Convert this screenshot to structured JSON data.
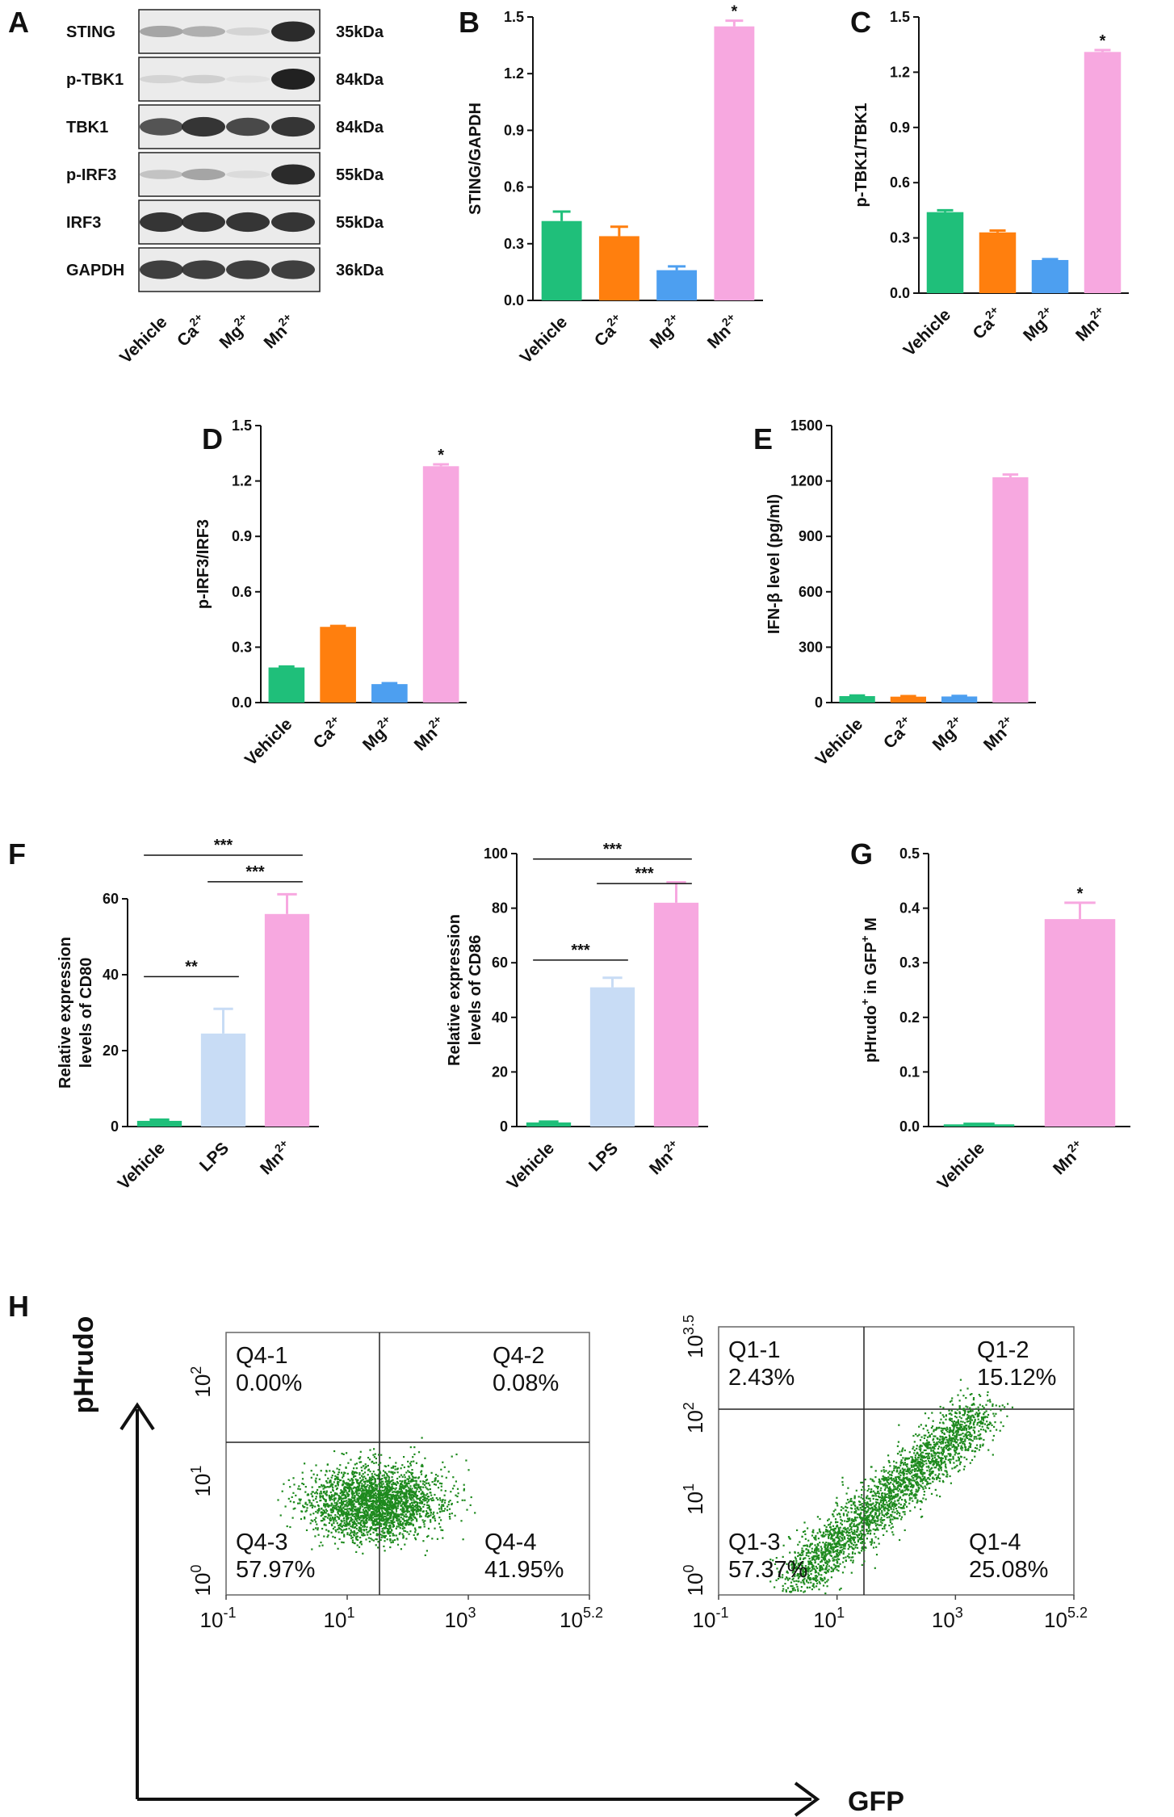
{
  "panel_letters": [
    "A",
    "B",
    "C",
    "D",
    "E",
    "F",
    "G",
    "H"
  ],
  "western_blot": {
    "rows": [
      {
        "protein": "STING",
        "size": "35kDa",
        "bands": [
          0.35,
          0.3,
          0.12,
          0.95
        ]
      },
      {
        "protein": "p-TBK1",
        "size": "84kDa",
        "bands": [
          0.12,
          0.14,
          0.05,
          1.0
        ]
      },
      {
        "protein": "TBK1",
        "size": "84kDa",
        "bands": [
          0.75,
          0.9,
          0.8,
          0.9
        ]
      },
      {
        "protein": "p-IRF3",
        "size": "55kDa",
        "bands": [
          0.2,
          0.35,
          0.08,
          0.95
        ]
      },
      {
        "protein": "IRF3",
        "size": "55kDa",
        "bands": [
          0.9,
          0.9,
          0.9,
          0.9
        ]
      },
      {
        "protein": "GAPDH",
        "size": "36kDa",
        "bands": [
          0.85,
          0.85,
          0.85,
          0.85
        ]
      }
    ],
    "lanes": [
      {
        "base": "Vehicle",
        "sup": ""
      },
      {
        "base": "Ca",
        "sup": "2+"
      },
      {
        "base": "Mg",
        "sup": "2+"
      },
      {
        "base": "Mn",
        "sup": "2+"
      }
    ]
  },
  "chart_data": [
    {
      "panel": "B",
      "type": "bar",
      "ylabel": "STING/GAPDH",
      "ylim": [
        0,
        1.5
      ],
      "yticks": [
        "0.0",
        "0.3",
        "0.6",
        "0.9",
        "1.2",
        "1.5"
      ],
      "categories": [
        {
          "base": "Vehicle",
          "sup": ""
        },
        {
          "base": "Ca",
          "sup": "2+"
        },
        {
          "base": "Mg",
          "sup": "2+"
        },
        {
          "base": "Mn",
          "sup": "2+"
        }
      ],
      "values": [
        0.42,
        0.34,
        0.16,
        1.45
      ],
      "errors": [
        0.05,
        0.05,
        0.02,
        0.03
      ],
      "colors": [
        "#1fbf7a",
        "#ff7f0e",
        "#4d9ff0",
        "#f7a8e0"
      ],
      "annotations": [
        "",
        "",
        "",
        "*"
      ],
      "brackets": []
    },
    {
      "panel": "C",
      "type": "bar",
      "ylabel": "p-TBK1/TBK1",
      "ylim": [
        0,
        1.5
      ],
      "yticks": [
        "0.0",
        "0.3",
        "0.6",
        "0.9",
        "1.2",
        "1.5"
      ],
      "categories": [
        {
          "base": "Vehicle",
          "sup": ""
        },
        {
          "base": "Ca",
          "sup": "2+"
        },
        {
          "base": "Mg",
          "sup": "2+"
        },
        {
          "base": "Mn",
          "sup": "2+"
        }
      ],
      "values": [
        0.44,
        0.33,
        0.18,
        1.31
      ],
      "errors": [
        0.01,
        0.01,
        0.005,
        0.01
      ],
      "colors": [
        "#1fbf7a",
        "#ff7f0e",
        "#4d9ff0",
        "#f7a8e0"
      ],
      "annotations": [
        "",
        "",
        "",
        "*"
      ],
      "brackets": []
    },
    {
      "panel": "D",
      "type": "bar",
      "ylabel": "p-IRF3/IRF3",
      "ylim": [
        0,
        1.5
      ],
      "yticks": [
        "0.0",
        "0.3",
        "0.6",
        "0.9",
        "1.2",
        "1.5"
      ],
      "categories": [
        {
          "base": "Vehicle",
          "sup": ""
        },
        {
          "base": "Ca",
          "sup": "2+"
        },
        {
          "base": "Mg",
          "sup": "2+"
        },
        {
          "base": "Mn",
          "sup": "2+"
        }
      ],
      "values": [
        0.19,
        0.41,
        0.1,
        1.28
      ],
      "errors": [
        0.005,
        0.005,
        0.005,
        0.01
      ],
      "colors": [
        "#1fbf7a",
        "#ff7f0e",
        "#4d9ff0",
        "#f7a8e0"
      ],
      "annotations": [
        "",
        "",
        "",
        "*"
      ],
      "brackets": []
    },
    {
      "panel": "E",
      "type": "bar",
      "ylabel": "IFN-β level (pg/ml)",
      "ylim": [
        0,
        1500
      ],
      "yticks": [
        "0",
        "300",
        "600",
        "900",
        "1200",
        "1500"
      ],
      "categories": [
        {
          "base": "Vehicle",
          "sup": ""
        },
        {
          "base": "Ca",
          "sup": "2+"
        },
        {
          "base": "Mg",
          "sup": "2+"
        },
        {
          "base": "Mn",
          "sup": "2+"
        }
      ],
      "values": [
        35,
        32,
        33,
        1220
      ],
      "errors": [
        3,
        3,
        3,
        15
      ],
      "colors": [
        "#1fbf7a",
        "#ff7f0e",
        "#4d9ff0",
        "#f7a8e0"
      ],
      "annotations": [
        "",
        "",
        "",
        ""
      ],
      "brackets": []
    },
    {
      "panel": "F-left",
      "type": "bar",
      "ylabel": "Relative expression levels of CD80",
      "ylim": [
        0,
        60
      ],
      "yticks": [
        "0",
        "20",
        "40",
        "60"
      ],
      "categories": [
        {
          "base": "Vehicle",
          "sup": ""
        },
        {
          "base": "LPS",
          "sup": ""
        },
        {
          "base": "Mn",
          "sup": "2+"
        }
      ],
      "values": [
        1.5,
        24.5,
        56
      ],
      "errors": [
        0.3,
        6.5,
        5.2
      ],
      "colors": [
        "#1fbf7a",
        "#c8dcf5",
        "#f7a8e0"
      ],
      "annotations": [
        "",
        "",
        ""
      ],
      "brackets": [
        {
          "from": 0,
          "to": 1,
          "y": 39.5,
          "label": "**"
        },
        {
          "from": 0,
          "to": 2,
          "y": 71.5,
          "label": "***"
        },
        {
          "from": 1,
          "to": 2,
          "y": 64.5,
          "label": "***"
        }
      ]
    },
    {
      "panel": "F-right",
      "type": "bar",
      "ylabel": "Relative expression levels of CD86",
      "ylim": [
        0,
        100
      ],
      "yticks": [
        "0",
        "20",
        "40",
        "60",
        "80",
        "100"
      ],
      "categories": [
        {
          "base": "Vehicle",
          "sup": ""
        },
        {
          "base": "LPS",
          "sup": ""
        },
        {
          "base": "Mn",
          "sup": "2+"
        }
      ],
      "values": [
        1.5,
        51,
        82
      ],
      "errors": [
        0.3,
        3.5,
        7.5
      ],
      "colors": [
        "#1fbf7a",
        "#c8dcf5",
        "#f7a8e0"
      ],
      "annotations": [
        "",
        "",
        ""
      ],
      "brackets": [
        {
          "from": 0,
          "to": 1,
          "y": 61,
          "label": "***"
        },
        {
          "from": 0,
          "to": 2,
          "y": 98,
          "label": "***"
        },
        {
          "from": 1,
          "to": 2,
          "y": 89,
          "label": "***"
        }
      ]
    },
    {
      "panel": "G",
      "type": "bar",
      "ylabel": "pHrudo+ in GFP+ M",
      "ylim": [
        0,
        0.5
      ],
      "yticks": [
        "0.0",
        "0.1",
        "0.2",
        "0.3",
        "0.4",
        "0.5"
      ],
      "categories": [
        {
          "base": "Vehicle",
          "sup": ""
        },
        {
          "base": "Mn",
          "sup": "2+"
        }
      ],
      "values": [
        0.004,
        0.38
      ],
      "errors": [
        0.001,
        0.03
      ],
      "colors": [
        "#1fbf7a",
        "#f7a8e0"
      ],
      "annotations": [
        "",
        "*"
      ],
      "brackets": []
    },
    {
      "panel": "H",
      "type": "scatter",
      "xlabel": "GFP",
      "ylabel": "pHrudo",
      "plots": [
        {
          "quadrants": [
            {
              "name": "Q4-1",
              "pct": "0.00%"
            },
            {
              "name": "Q4-2",
              "pct": "0.08%"
            },
            {
              "name": "Q4-3",
              "pct": "57.97%"
            },
            {
              "name": "Q4-4",
              "pct": "41.95%"
            }
          ],
          "y_tick_exponents": [
            "0",
            "1",
            "2"
          ],
          "x_tick_exponents": [
            "-1",
            "1",
            "3",
            "5.2"
          ]
        },
        {
          "quadrants": [
            {
              "name": "Q1-1",
              "pct": "2.43%"
            },
            {
              "name": "Q1-2",
              "pct": "15.12%"
            },
            {
              "name": "Q1-3",
              "pct": "57.37%"
            },
            {
              "name": "Q1-4",
              "pct": "25.08%"
            }
          ],
          "y_tick_exponents": [
            "0",
            "1",
            "2",
            "3.5"
          ],
          "x_tick_exponents": [
            "-1",
            "1",
            "3",
            "5.2"
          ]
        }
      ]
    }
  ]
}
